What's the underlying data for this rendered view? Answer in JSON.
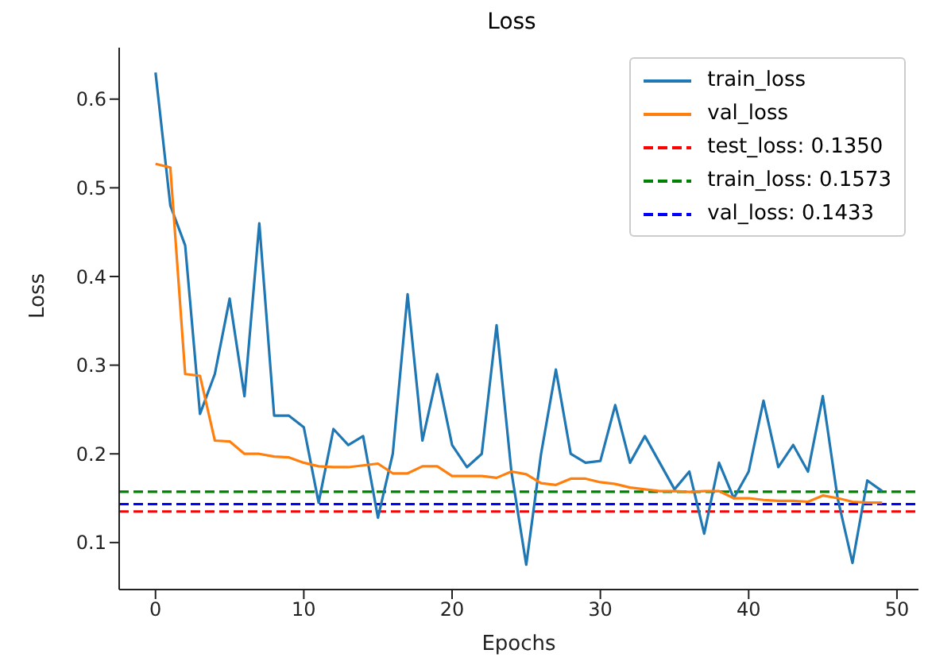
{
  "chart_data": {
    "type": "line",
    "title": "Loss",
    "xlabel": "Epochs",
    "ylabel": "Loss",
    "x": [
      0,
      1,
      2,
      3,
      4,
      5,
      6,
      7,
      8,
      9,
      10,
      11,
      12,
      13,
      14,
      15,
      16,
      17,
      18,
      19,
      20,
      21,
      22,
      23,
      24,
      25,
      26,
      27,
      28,
      29,
      30,
      31,
      32,
      33,
      34,
      35,
      36,
      37,
      38,
      39,
      40,
      41,
      42,
      43,
      44,
      45,
      46,
      47,
      48,
      49
    ],
    "series": [
      {
        "name": "train_loss",
        "color": "#1f77b4",
        "values": [
          0.63,
          0.48,
          0.435,
          0.245,
          0.29,
          0.375,
          0.265,
          0.46,
          0.243,
          0.243,
          0.23,
          0.145,
          0.228,
          0.21,
          0.22,
          0.128,
          0.2,
          0.38,
          0.215,
          0.29,
          0.21,
          0.185,
          0.2,
          0.345,
          0.18,
          0.075,
          0.2,
          0.295,
          0.2,
          0.19,
          0.192,
          0.255,
          0.19,
          0.22,
          0.19,
          0.16,
          0.18,
          0.11,
          0.19,
          0.15,
          0.18,
          0.26,
          0.185,
          0.21,
          0.18,
          0.265,
          0.15,
          0.077,
          0.17,
          0.158
        ]
      },
      {
        "name": "val_loss",
        "color": "#ff7f0e",
        "values": [
          0.527,
          0.523,
          0.29,
          0.288,
          0.215,
          0.214,
          0.2,
          0.2,
          0.197,
          0.196,
          0.19,
          0.186,
          0.185,
          0.185,
          0.187,
          0.189,
          0.178,
          0.178,
          0.186,
          0.186,
          0.175,
          0.175,
          0.175,
          0.173,
          0.18,
          0.177,
          0.167,
          0.165,
          0.172,
          0.172,
          0.168,
          0.166,
          0.162,
          0.16,
          0.158,
          0.158,
          0.157,
          0.158,
          0.158,
          0.15,
          0.15,
          0.148,
          0.147,
          0.147,
          0.146,
          0.153,
          0.15,
          0.146,
          0.145,
          0.145
        ]
      }
    ],
    "ref_lines": [
      {
        "axis": "y",
        "value": 0.135,
        "label": "test_loss: 0.1350",
        "color": "#ff0000",
        "line_style": "dashed"
      },
      {
        "axis": "y",
        "value": 0.1573,
        "label": "train_loss: 0.1573",
        "color": "#008000",
        "line_style": "dashed"
      },
      {
        "axis": "y",
        "value": 0.1433,
        "label": "val_loss: 0.1433",
        "color": "#0000ff",
        "line_style": "dashed"
      }
    ],
    "xlim": [
      -2.45,
      51.45
    ],
    "xticks": [
      0,
      10,
      20,
      30,
      40,
      50
    ],
    "ylim": [
      0.047,
      0.658
    ],
    "yticks": [
      0.1,
      0.2,
      0.3,
      0.4,
      0.5,
      0.6
    ],
    "grid": false,
    "legend": "top right",
    "marker": "none",
    "line_style": "solid"
  }
}
